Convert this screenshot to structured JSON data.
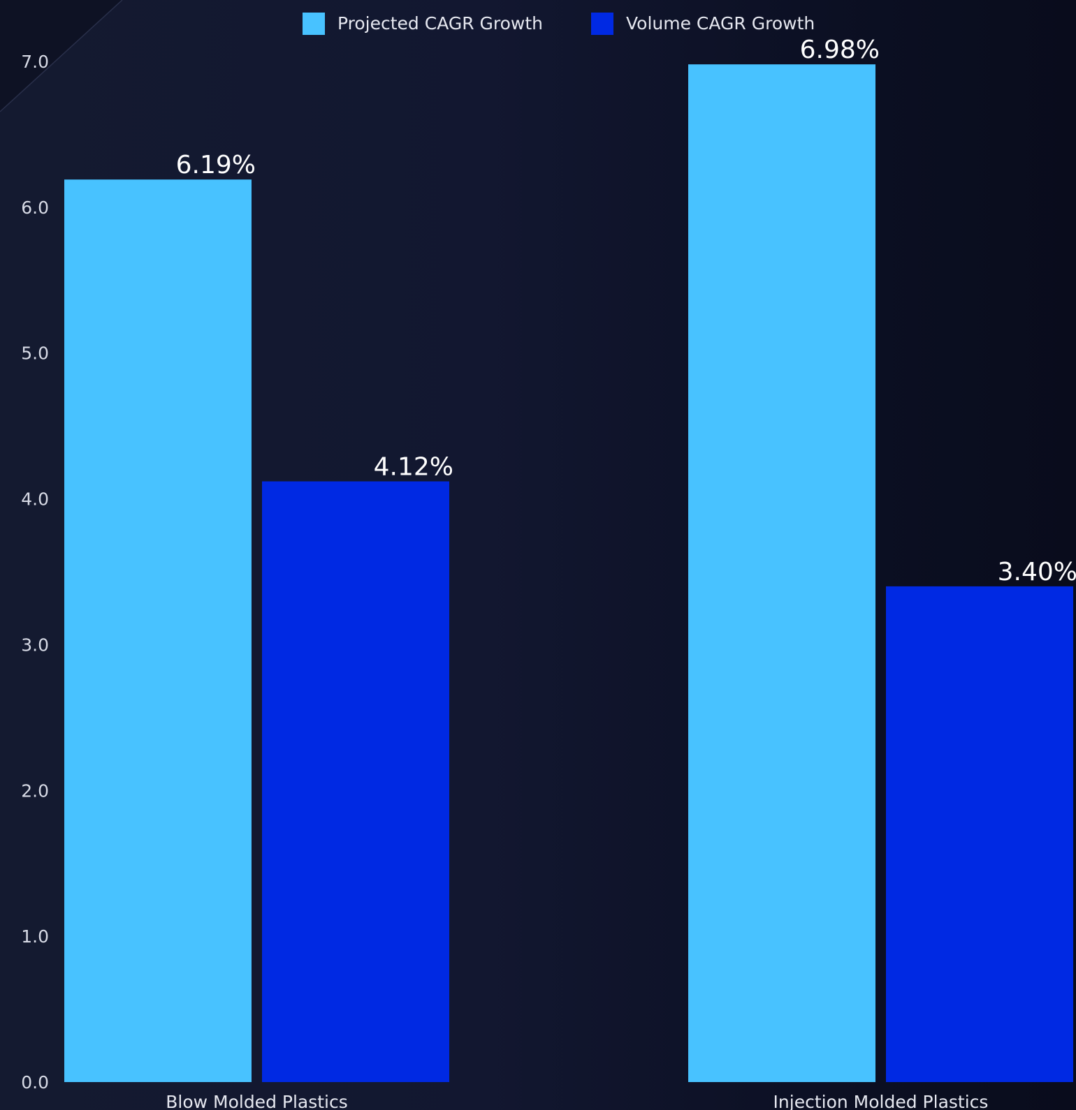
{
  "chart_data": {
    "type": "bar",
    "categories": [
      "Blow Molded Plastics",
      "Injection Molded Plastics"
    ],
    "series": [
      {
        "name": "Projected CAGR Growth",
        "color": "#48c2ff",
        "values": [
          6.19,
          6.98
        ],
        "labels": [
          "6.19%",
          "6.98%"
        ]
      },
      {
        "name": "Volume CAGR Growth",
        "color": "#0029e3",
        "values": [
          4.12,
          3.4
        ],
        "labels": [
          "4.12%",
          "3.40%"
        ]
      }
    ],
    "ylim": [
      0,
      7
    ],
    "yticks": [
      {
        "value": 0,
        "label": "0.0"
      },
      {
        "value": 1,
        "label": "1.0"
      },
      {
        "value": 2,
        "label": "2.0"
      },
      {
        "value": 3,
        "label": "3.0"
      },
      {
        "value": 4,
        "label": "4.0"
      },
      {
        "value": 5,
        "label": "5.0"
      },
      {
        "value": 6,
        "label": "6.0"
      },
      {
        "value": 7,
        "label": "7.0"
      }
    ],
    "grid": false,
    "legend_position": "top-center",
    "title": "",
    "xlabel": "",
    "ylabel": ""
  }
}
